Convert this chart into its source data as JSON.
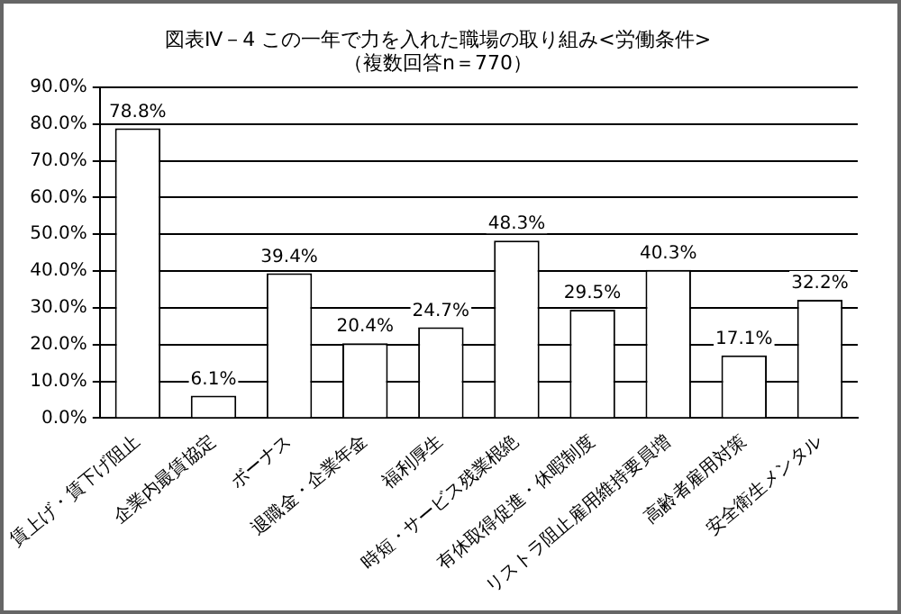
{
  "chart_data": {
    "type": "bar",
    "title": "図表Ⅳ－4 この一年で力を入れた職場の取り組み<労働条件>",
    "subtitle": "（複数回答n＝770）",
    "categories": [
      "賃上げ・賃下げ阻止",
      "企業内最賃協定",
      "ボーナス",
      "退職金・企業年金",
      "福利厚生",
      "時短・サービス残業根絶",
      "有休取得促進・休暇制度",
      "リストラ阻止雇用維持要員増",
      "高齢者雇用対策",
      "安全衛生メンタル"
    ],
    "values": [
      78.8,
      6.1,
      39.4,
      20.4,
      24.7,
      48.3,
      29.5,
      40.3,
      17.1,
      32.2
    ],
    "value_labels": [
      "78.8%",
      "6.1%",
      "39.4%",
      "20.4%",
      "24.7%",
      "48.3%",
      "29.5%",
      "40.3%",
      "17.1%",
      "32.2%"
    ],
    "color": "#ffffff",
    "ylim": [
      0,
      90
    ],
    "yticks": [
      {
        "value": 0,
        "label": "0.0%"
      },
      {
        "value": 10,
        "label": "10.0%"
      },
      {
        "value": 20,
        "label": "20.0%"
      },
      {
        "value": 30,
        "label": "30.0%"
      },
      {
        "value": 40,
        "label": "40.0%"
      },
      {
        "value": 50,
        "label": "50.0%"
      },
      {
        "value": 60,
        "label": "60.0%"
      },
      {
        "value": 70,
        "label": "70.0%"
      },
      {
        "value": 80,
        "label": "80.0%"
      },
      {
        "value": 90,
        "label": "90.0%"
      }
    ],
    "grid": "y"
  }
}
